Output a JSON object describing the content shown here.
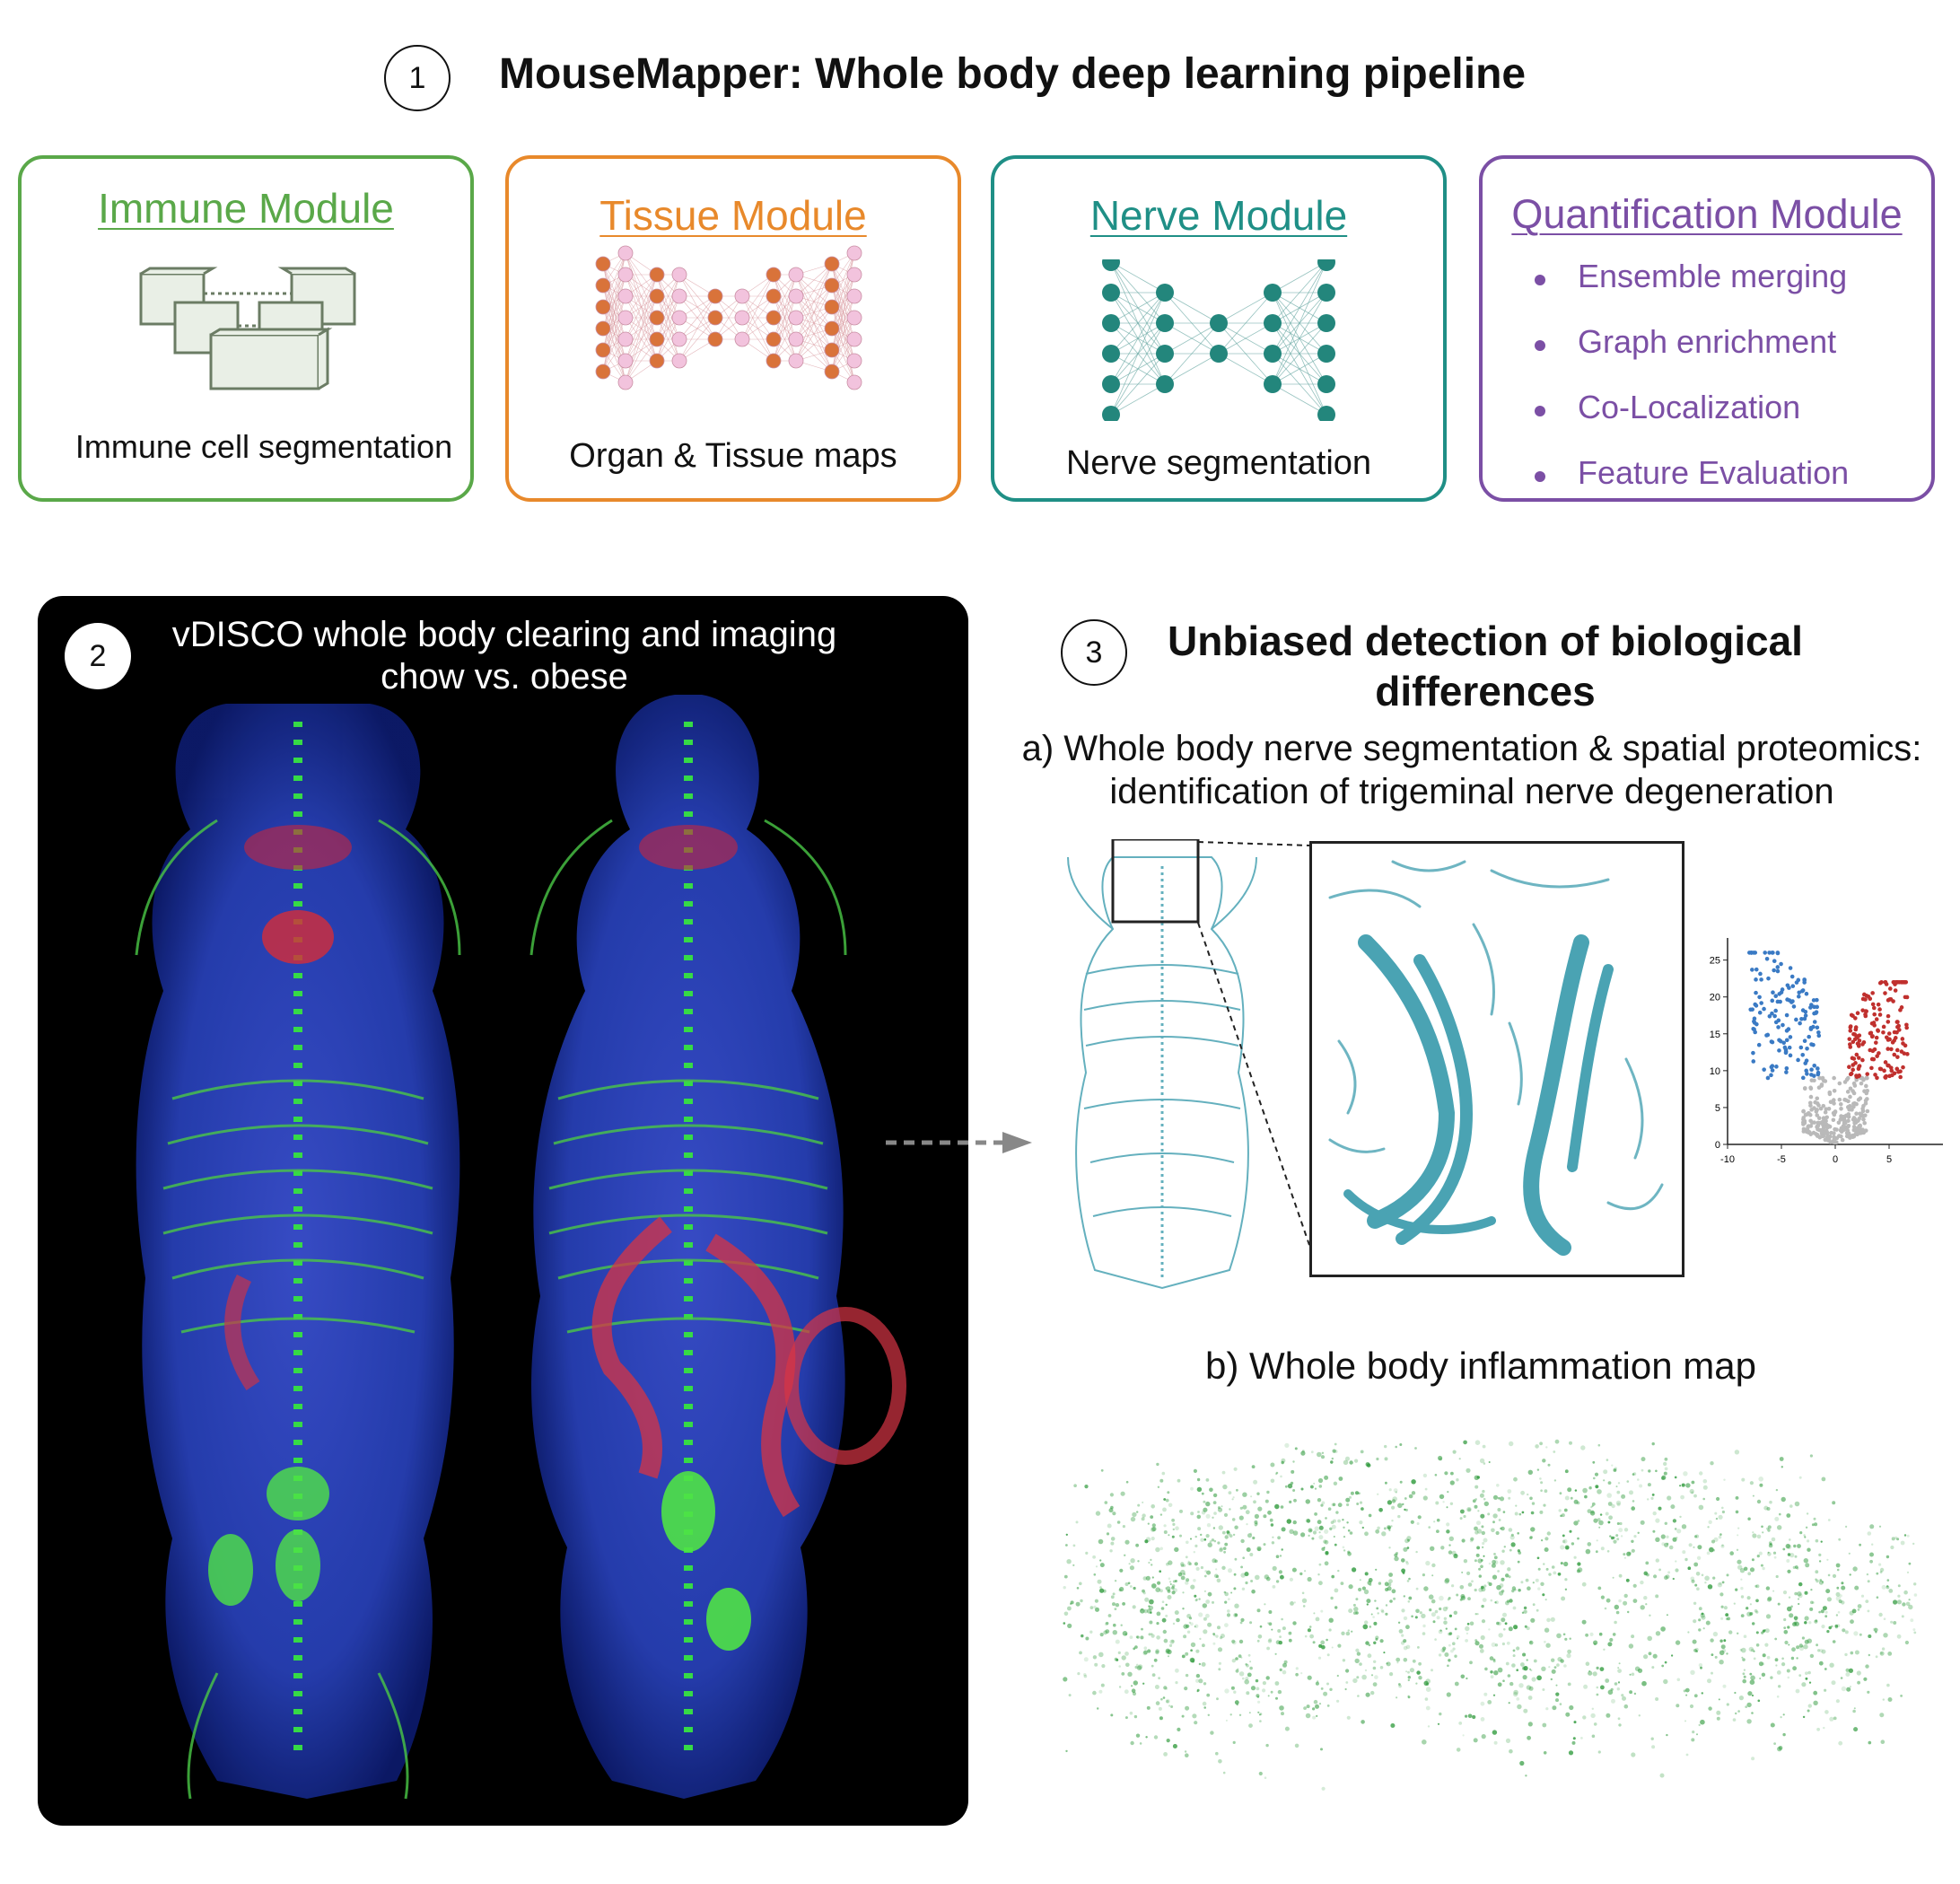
{
  "header": {
    "step_number": "1",
    "title": "MouseMapper: Whole body deep learning pipeline"
  },
  "modules": [
    {
      "title": "Immune Module",
      "caption": "Immune cell segmentation",
      "color": "#5aa849"
    },
    {
      "title": "Tissue Module",
      "caption": "Organ & Tissue maps",
      "color": "#e8892b"
    },
    {
      "title": "Nerve Module",
      "caption": "Nerve segmentation",
      "color": "#1f8f86"
    },
    {
      "title": "Quantification Module",
      "items": [
        "Ensemble merging",
        "Graph enrichment",
        "Co-Localization",
        "Feature Evaluation"
      ],
      "color": "#7b4fa5"
    }
  ],
  "panel2": {
    "step_number": "2",
    "line1": "vDISCO whole body clearing and imaging",
    "line2": "chow vs. obese"
  },
  "panel3": {
    "step_number": "3",
    "title_line1": "Unbiased detection of biological",
    "title_line2": "differences",
    "subtitle_a_line1": "a) Whole body nerve segmentation & spatial proteomics:",
    "subtitle_a_line2": "identification of trigeminal nerve degeneration",
    "subtitle_b": "b) Whole body inflammation map"
  },
  "volcano": {
    "x_ticks": [
      "-10",
      "-5",
      "0",
      "5"
    ],
    "y_ticks": [
      "0",
      "5",
      "10",
      "15",
      "20",
      "25"
    ],
    "colors": {
      "down": "#3a7ac4",
      "up": "#c0302e",
      "ns": "#b9b9b9"
    }
  },
  "colors": {
    "nerve": "#4aa3b3",
    "inflammation": "#2f9a3c"
  }
}
